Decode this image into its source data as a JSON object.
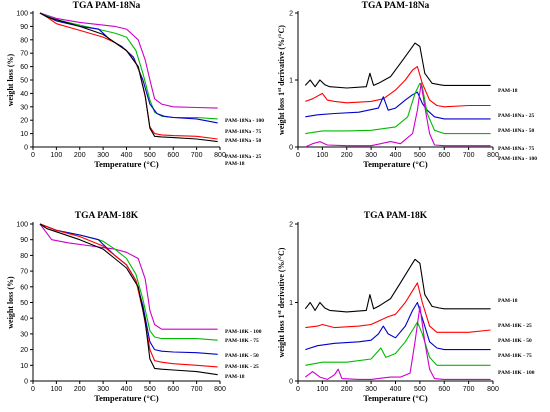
{
  "colors": {
    "PAM-18": "#000000",
    "s25": "#ff0000",
    "s50": "#0000cc",
    "s75": "#00bb00",
    "s100": "#cc00cc"
  },
  "chart_data": [
    {
      "type": "line",
      "title": "TGA PAM-18Na",
      "xlabel": "Temperature (°C)",
      "ylabel": "weight loss (%)",
      "xlim": [
        0,
        800
      ],
      "ylim": [
        0,
        100
      ],
      "xticks": [
        0,
        100,
        200,
        300,
        400,
        500,
        600,
        700,
        800
      ],
      "yticks": [
        0,
        10,
        20,
        30,
        40,
        50,
        60,
        70,
        80,
        90,
        100
      ],
      "series": [
        {
          "name": "PAM-18Na - 100",
          "colorKey": "s100",
          "x": [
            30,
            100,
            200,
            300,
            350,
            400,
            450,
            480,
            500,
            520,
            550,
            600,
            700,
            790
          ],
          "y": [
            100,
            96,
            93,
            91,
            90,
            88,
            80,
            65,
            50,
            36,
            32,
            30,
            29.5,
            29
          ]
        },
        {
          "name": "PAM-18Na - 75",
          "colorKey": "s75",
          "x": [
            30,
            100,
            200,
            300,
            350,
            400,
            440,
            470,
            500,
            520,
            550,
            600,
            700,
            790
          ],
          "y": [
            100,
            95,
            91,
            87,
            85,
            82,
            72,
            55,
            35,
            26,
            23,
            22,
            22,
            21
          ]
        },
        {
          "name": "PAM-18Na - 50",
          "colorKey": "s50",
          "x": [
            30,
            100,
            200,
            280,
            300,
            330,
            380,
            430,
            470,
            500,
            530,
            560,
            600,
            700,
            790
          ],
          "y": [
            100,
            94,
            90,
            88,
            85,
            80,
            75,
            67,
            50,
            32,
            25,
            23,
            22,
            21,
            18
          ]
        },
        {
          "name": "PAM-18Na - 25",
          "colorKey": "s25",
          "x": [
            30,
            60,
            100,
            200,
            300,
            350,
            400,
            450,
            480,
            500,
            520,
            550,
            600,
            700,
            790
          ],
          "y": [
            100,
            97,
            92,
            87,
            82,
            78,
            72,
            60,
            38,
            15,
            10,
            9,
            8.5,
            8,
            6
          ]
        },
        {
          "name": "PAM-18",
          "colorKey": "PAM-18",
          "x": [
            30,
            60,
            100,
            200,
            300,
            350,
            400,
            450,
            480,
            500,
            520,
            550,
            600,
            700,
            790
          ],
          "y": [
            100,
            97,
            95,
            90,
            84,
            78,
            72,
            60,
            38,
            14,
            8,
            7.5,
            7,
            6,
            4
          ]
        }
      ]
    },
    {
      "type": "line",
      "title": "TGA PAM-18Na",
      "xlabel": "Temperature (°C)",
      "ylabel": "weight loss 1st derivative (%/°C)",
      "xlim": [
        0,
        800
      ],
      "ylim": [
        0,
        2
      ],
      "xticks": [
        0,
        100,
        200,
        300,
        400,
        500,
        600,
        700,
        800
      ],
      "yticks": [
        0,
        1,
        2
      ],
      "series": [
        {
          "name": "PAM-18",
          "colorKey": "PAM-18",
          "x": [
            30,
            50,
            70,
            90,
            110,
            130,
            200,
            280,
            295,
            310,
            330,
            380,
            420,
            460,
            480,
            500,
            520,
            550,
            580,
            600,
            700,
            790
          ],
          "y": [
            0.92,
            1.0,
            0.9,
            1.0,
            0.93,
            0.9,
            0.88,
            0.9,
            1.1,
            0.92,
            0.95,
            1.05,
            1.25,
            1.45,
            1.55,
            1.5,
            1.1,
            0.95,
            0.93,
            0.92,
            0.92,
            0.92
          ]
        },
        {
          "name": "PAM-18Na - 25",
          "colorKey": "s25",
          "x": [
            30,
            60,
            100,
            120,
            150,
            200,
            300,
            350,
            400,
            440,
            470,
            490,
            510,
            540,
            570,
            600,
            700,
            790
          ],
          "y": [
            0.68,
            0.72,
            0.8,
            0.7,
            0.68,
            0.66,
            0.68,
            0.72,
            0.85,
            1.0,
            1.15,
            1.2,
            0.95,
            0.7,
            0.62,
            0.6,
            0.62,
            0.62
          ]
        },
        {
          "name": "PAM-18Na - 50",
          "colorKey": "s50",
          "x": [
            30,
            80,
            150,
            250,
            330,
            350,
            370,
            400,
            440,
            470,
            490,
            510,
            530,
            560,
            600,
            700,
            790
          ],
          "y": [
            0.45,
            0.48,
            0.5,
            0.52,
            0.58,
            0.75,
            0.55,
            0.58,
            0.7,
            0.78,
            0.82,
            0.65,
            0.55,
            0.45,
            0.42,
            0.42,
            0.42
          ]
        },
        {
          "name": "PAM-18Na - 75",
          "colorKey": "s75",
          "x": [
            30,
            100,
            200,
            300,
            400,
            450,
            480,
            500,
            510,
            530,
            560,
            600,
            700,
            790
          ],
          "y": [
            0.2,
            0.24,
            0.24,
            0.25,
            0.3,
            0.45,
            0.8,
            0.95,
            0.9,
            0.5,
            0.25,
            0.2,
            0.2,
            0.2
          ]
        },
        {
          "name": "PAM-18Na - 100",
          "colorKey": "s100",
          "x": [
            30,
            60,
            90,
            120,
            200,
            300,
            380,
            420,
            470,
            490,
            505,
            520,
            540,
            560,
            600,
            700,
            790
          ],
          "y": [
            0.0,
            0.05,
            0.08,
            0.03,
            0.02,
            0.02,
            0.08,
            0.05,
            0.2,
            0.55,
            0.95,
            0.6,
            0.2,
            0.03,
            0.02,
            0.02,
            0.02
          ]
        }
      ]
    },
    {
      "type": "line",
      "title": "TGA PAM-18K",
      "xlabel": "Temperature (°C)",
      "ylabel": "weight loss (%)",
      "xlim": [
        0,
        800
      ],
      "ylim": [
        0,
        100
      ],
      "xticks": [
        0,
        100,
        200,
        300,
        400,
        500,
        600,
        700,
        800
      ],
      "yticks": [
        0,
        10,
        20,
        30,
        40,
        50,
        60,
        70,
        80,
        90,
        100
      ],
      "series": [
        {
          "name": "PAM-18K - 100",
          "colorKey": "s100",
          "x": [
            30,
            80,
            150,
            250,
            300,
            350,
            400,
            450,
            480,
            500,
            520,
            550,
            600,
            700,
            790
          ],
          "y": [
            100,
            90,
            88,
            86,
            85,
            84,
            82,
            78,
            65,
            45,
            36,
            33,
            33,
            33,
            33
          ]
        },
        {
          "name": "PAM-18K - 75",
          "colorKey": "s75",
          "x": [
            30,
            100,
            200,
            280,
            300,
            350,
            400,
            440,
            470,
            500,
            520,
            550,
            600,
            700,
            790
          ],
          "y": [
            100,
            96,
            93,
            90,
            89,
            84,
            78,
            68,
            52,
            32,
            28,
            27,
            27,
            27,
            26
          ]
        },
        {
          "name": "PAM-18K - 50",
          "colorKey": "s50",
          "x": [
            30,
            100,
            200,
            280,
            300,
            350,
            400,
            440,
            470,
            500,
            520,
            550,
            600,
            700,
            790
          ],
          "y": [
            100,
            96,
            93,
            90,
            87,
            80,
            74,
            64,
            48,
            25,
            20,
            19,
            18.5,
            18,
            17
          ]
        },
        {
          "name": "PAM-18K - 25",
          "colorKey": "s25",
          "x": [
            30,
            100,
            200,
            300,
            350,
            400,
            440,
            470,
            500,
            520,
            550,
            600,
            700,
            790
          ],
          "y": [
            100,
            96,
            92,
            86,
            80,
            74,
            64,
            45,
            20,
            13,
            12,
            11,
            10,
            9
          ]
        },
        {
          "name": "PAM-18",
          "colorKey": "PAM-18",
          "x": [
            30,
            60,
            100,
            200,
            300,
            350,
            400,
            450,
            480,
            500,
            520,
            550,
            600,
            700,
            790
          ],
          "y": [
            100,
            97,
            95,
            90,
            84,
            78,
            72,
            60,
            38,
            14,
            8,
            7.5,
            7,
            6,
            4
          ]
        }
      ]
    },
    {
      "type": "line",
      "title": "TGA PAM-18K",
      "xlabel": "Temperature (°C)",
      "ylabel": "weight loss 1st derivative (%/°C)",
      "xlim": [
        0,
        800
      ],
      "ylim": [
        0,
        2
      ],
      "xticks": [
        0,
        100,
        200,
        300,
        400,
        500,
        600,
        700,
        800
      ],
      "yticks": [
        0,
        1,
        2
      ],
      "series": [
        {
          "name": "PAM-18",
          "colorKey": "PAM-18",
          "x": [
            30,
            50,
            70,
            90,
            110,
            130,
            200,
            280,
            295,
            310,
            330,
            380,
            420,
            460,
            480,
            500,
            520,
            550,
            580,
            600,
            700,
            790
          ],
          "y": [
            0.92,
            1.0,
            0.9,
            1.0,
            0.93,
            0.9,
            0.88,
            0.9,
            1.1,
            0.92,
            0.95,
            1.05,
            1.25,
            1.45,
            1.55,
            1.5,
            1.1,
            0.95,
            0.93,
            0.92,
            0.92,
            0.92
          ]
        },
        {
          "name": "PAM-18K - 25",
          "colorKey": "s25",
          "x": [
            30,
            80,
            100,
            150,
            250,
            300,
            370,
            400,
            440,
            470,
            490,
            510,
            540,
            570,
            600,
            700,
            790
          ],
          "y": [
            0.68,
            0.7,
            0.72,
            0.68,
            0.7,
            0.72,
            0.82,
            0.85,
            1.0,
            1.15,
            1.25,
            1.0,
            0.7,
            0.62,
            0.62,
            0.62,
            0.65
          ]
        },
        {
          "name": "PAM-18K - 50",
          "colorKey": "s50",
          "x": [
            30,
            80,
            150,
            250,
            300,
            330,
            350,
            370,
            400,
            440,
            470,
            490,
            510,
            540,
            570,
            600,
            700,
            790
          ],
          "y": [
            0.4,
            0.45,
            0.48,
            0.5,
            0.52,
            0.6,
            0.7,
            0.6,
            0.55,
            0.7,
            0.9,
            1.0,
            0.8,
            0.5,
            0.42,
            0.4,
            0.4,
            0.4
          ]
        },
        {
          "name": "PAM-18K - 75",
          "colorKey": "s75",
          "x": [
            30,
            100,
            200,
            300,
            320,
            340,
            360,
            400,
            440,
            470,
            490,
            510,
            540,
            570,
            600,
            700,
            790
          ],
          "y": [
            0.2,
            0.24,
            0.24,
            0.28,
            0.35,
            0.42,
            0.3,
            0.35,
            0.5,
            0.65,
            0.75,
            0.6,
            0.3,
            0.2,
            0.2,
            0.2,
            0.2
          ]
        },
        {
          "name": "PAM-18K - 100",
          "colorKey": "s100",
          "x": [
            30,
            60,
            90,
            120,
            150,
            165,
            180,
            250,
            300,
            380,
            420,
            460,
            480,
            500,
            520,
            540,
            560,
            600,
            700,
            790
          ],
          "y": [
            0.05,
            0.12,
            0.05,
            0.02,
            0.08,
            0.15,
            0.03,
            0.02,
            0.02,
            0.05,
            0.05,
            0.1,
            0.5,
            0.95,
            0.5,
            0.15,
            0.03,
            0.02,
            0.02,
            0.02
          ]
        }
      ]
    }
  ]
}
